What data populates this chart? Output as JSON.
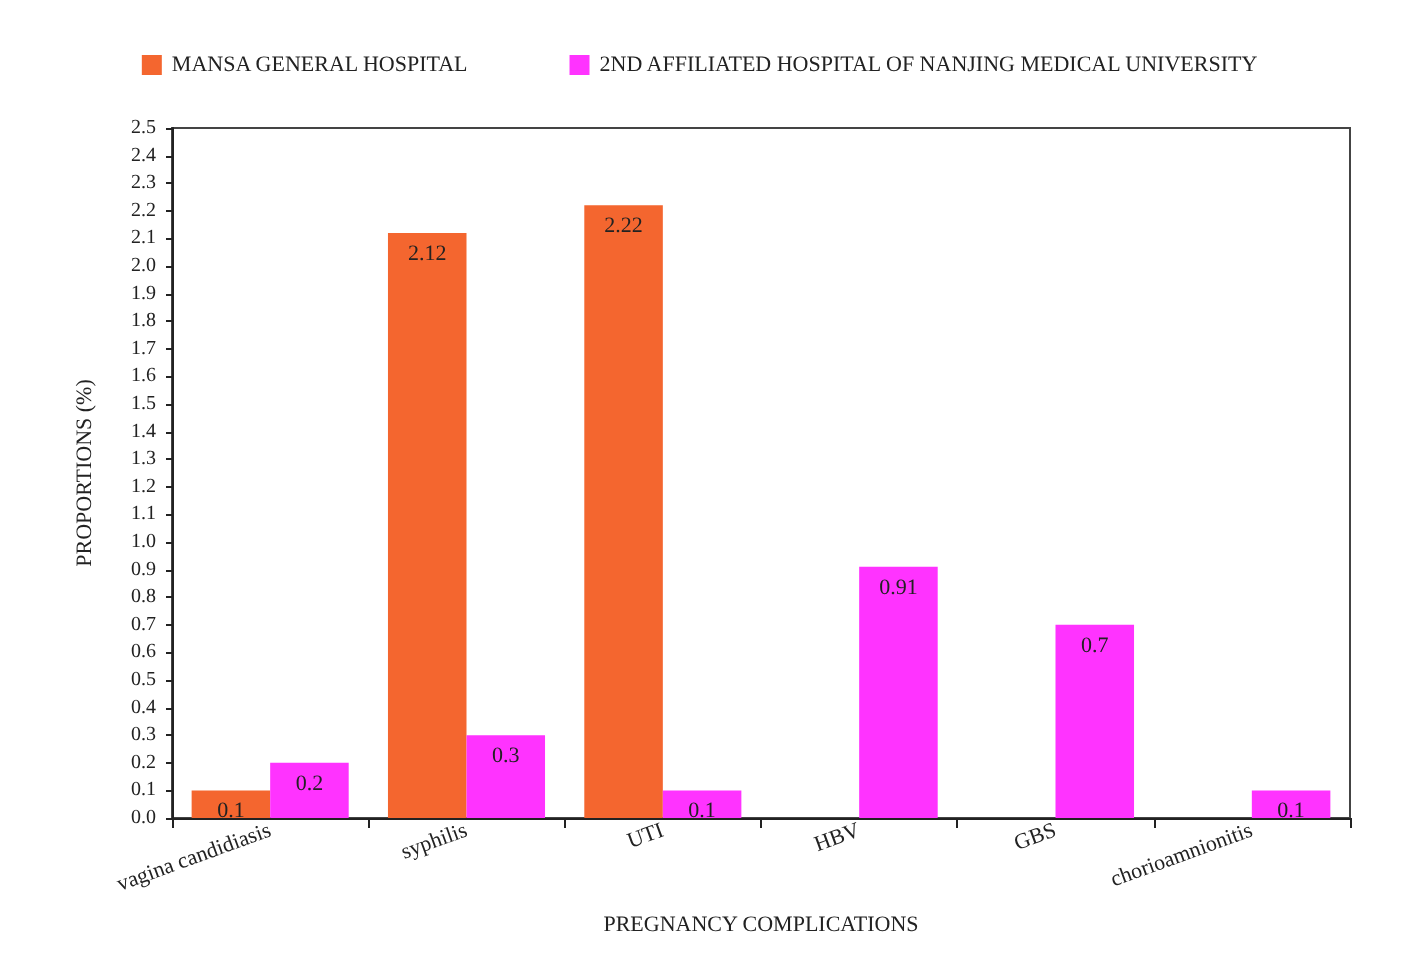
{
  "chart_data": {
    "type": "bar",
    "xlabel": "PREGNANCY COMPLICATIONS",
    "ylabel": "PROPORTIONS (%)",
    "categories": [
      "vagina candidiasis",
      "syphilis",
      "UTI",
      "HBV",
      "GBS",
      "chorioamnionitis"
    ],
    "series": [
      {
        "name": "MANSA GENERAL HOSPITAL",
        "color": "#f4662f",
        "values": [
          0.1,
          2.12,
          2.22,
          null,
          null,
          null
        ]
      },
      {
        "name": "2ND AFFILIATED HOSPITAL OF NANJING MEDICAL UNIVERSITY",
        "color": "#ff33ff",
        "values": [
          0.2,
          0.3,
          0.1,
          0.91,
          0.7,
          0.1
        ]
      }
    ],
    "ylim": [
      0,
      2.5
    ],
    "yticks": [
      {
        "value": 0,
        "label": "0.0"
      },
      0.1,
      0.2,
      0.3,
      0.4,
      0.5,
      0.6,
      0.7,
      0.8,
      0.9,
      {
        "value": 1,
        "label": "1.0"
      },
      1.1,
      1.2,
      1.3,
      1.4,
      1.5,
      1.6,
      1.7,
      1.8,
      1.9,
      {
        "value": 2,
        "label": "2.0"
      },
      2.1,
      2.2,
      2.3,
      2.4,
      2.5
    ],
    "data_labels": true,
    "grid": false,
    "legend": "top"
  }
}
